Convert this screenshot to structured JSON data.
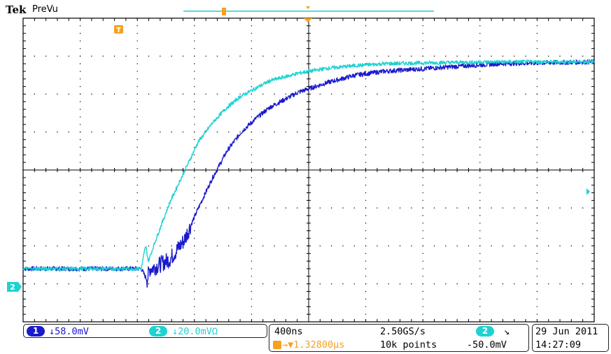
{
  "header": {
    "brand": "Tek",
    "mode": "PreVu"
  },
  "colors": {
    "ch1": "#1a1acc",
    "ch2": "#1ed2d2",
    "trigger": "#f5a020",
    "grid": "#000000"
  },
  "markers": {
    "trigger_top_icon": "T",
    "trigger_level_icon": "T",
    "ch2_ground_marker": "2"
  },
  "readouts": {
    "ch1_num": "1",
    "ch1_scale": "↓58.0mV",
    "ch2_num": "2",
    "ch2_scale": "↓20.0mVΩ",
    "timebase": "400ns",
    "sample_rate": "2.50GS/s",
    "trig_position": "→▼1.32800µs",
    "record_length": "10k points",
    "trig_source_num": "2",
    "trig_slope": "↘",
    "trig_level": "-50.0mV",
    "date": "29 Jun  2011",
    "time": "14:27:09"
  },
  "chart_data": {
    "type": "line",
    "title": "",
    "xlabel": "",
    "ylabel": "",
    "x_unit": "s",
    "y_unit": "div",
    "xlim": [
      -1.328e-06,
      2.672e-06
    ],
    "ylim": [
      -4,
      4
    ],
    "grid": true,
    "series": [
      {
        "channel": 1,
        "x": [
          -1.328e-06,
          -5e-07,
          -4.6e-07,
          -4.4e-07,
          -4e-07,
          -3e-07,
          -2e-07,
          -1e-07,
          0,
          1e-07,
          2e-07,
          3e-07,
          4e-07,
          6e-07,
          8e-07,
          1e-06,
          1.2e-06,
          1.6e-06,
          2e-06,
          2.672e-06
        ],
        "y": [
          -2.6,
          -2.6,
          -2.9,
          -2.6,
          -2.55,
          -2.35,
          -1.85,
          -1.0,
          -0.2,
          0.5,
          1.0,
          1.35,
          1.65,
          2.05,
          2.3,
          2.5,
          2.6,
          2.7,
          2.8,
          2.85
        ]
      },
      {
        "channel": 2,
        "x": [
          -1.328e-06,
          -5e-07,
          -4.7e-07,
          -4.5e-07,
          -4e-07,
          -3e-07,
          -2e-07,
          -1e-07,
          0,
          1e-07,
          2e-07,
          3e-07,
          4e-07,
          6e-07,
          8e-07,
          1e-06,
          1.2e-06,
          1.6e-06,
          2e-06,
          2.672e-06
        ],
        "y": [
          -2.6,
          -2.6,
          -2.0,
          -2.4,
          -1.85,
          -0.85,
          -0.05,
          0.75,
          1.25,
          1.65,
          1.95,
          2.15,
          2.35,
          2.55,
          2.68,
          2.75,
          2.8,
          2.83,
          2.85,
          2.85
        ]
      }
    ],
    "trigger": {
      "time": 0,
      "level": -0.2
    }
  }
}
